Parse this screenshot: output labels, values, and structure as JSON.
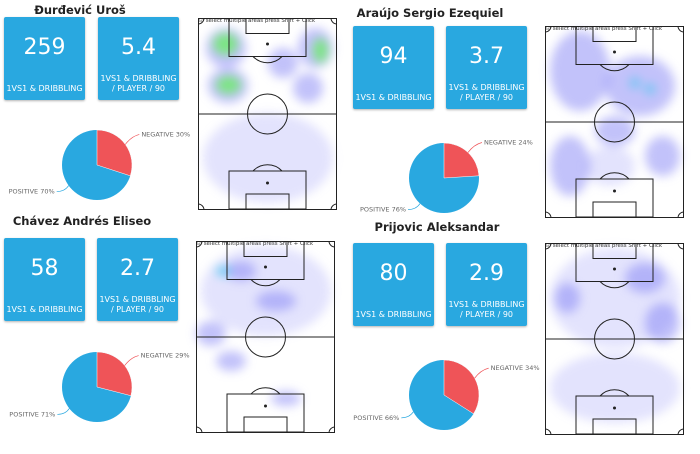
{
  "hint": "select multiple areas press Shift + Click",
  "colors": {
    "card": "#29a8e0",
    "positive": "#29a8e0",
    "negative": "#ef5458"
  },
  "players": [
    {
      "name": "Đurđević Uroš",
      "total": "259",
      "total_label": "1VS1 & DRIBBLING",
      "per90": "5.4",
      "per90_label": "1VS1 & DRIBBLING\n/ PLAYER / 90",
      "negative_pct": 30,
      "positive_pct": 70,
      "negative_label": "NEGATIVE 30%",
      "positive_label": "POSITIVE 70%"
    },
    {
      "name": "Araújo Sergio Ezequiel",
      "total": "94",
      "total_label": "1VS1 & DRIBBLING",
      "per90": "3.7",
      "per90_label": "1VS1 & DRIBBLING\n/ PLAYER / 90",
      "negative_pct": 24,
      "positive_pct": 76,
      "negative_label": "NEGATIVE 24%",
      "positive_label": "POSITIVE 76%"
    },
    {
      "name": "Chávez Andrés Eliseo",
      "total": "58",
      "total_label": "1VS1 & DRIBBLING",
      "per90": "2.7",
      "per90_label": "1VS1 & DRIBBLING\n/ PLAYER / 90",
      "negative_pct": 29,
      "positive_pct": 71,
      "negative_label": "NEGATIVE 29%",
      "positive_label": "POSITIVE 71%"
    },
    {
      "name": "Prijovic Aleksandar",
      "total": "80",
      "total_label": "1VS1 & DRIBBLING",
      "per90": "2.9",
      "per90_label": "1VS1 & DRIBBLING\n/ PLAYER / 90",
      "negative_pct": 34,
      "positive_pct": 66,
      "negative_label": "NEGATIVE 34%",
      "positive_label": "POSITIVE 66%"
    }
  ]
}
